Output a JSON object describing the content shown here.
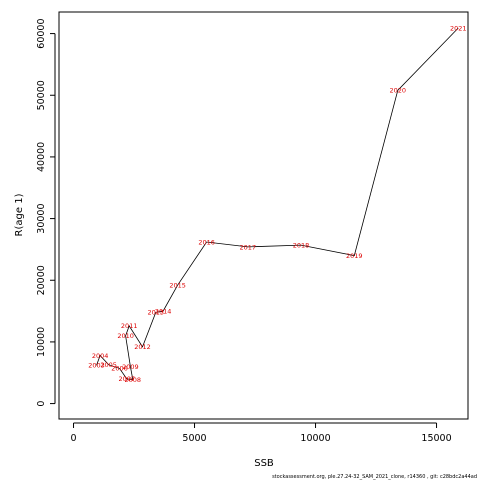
{
  "chart_data": {
    "type": "line",
    "xlabel": "SSB",
    "ylabel": "R(age 1)",
    "xlim": [
      -600,
      16300
    ],
    "ylim": [
      -2500,
      63500
    ],
    "x_ticks": [
      0,
      5000,
      10000,
      15000
    ],
    "x_tick_labels": [
      "0",
      "5000",
      "10000",
      "15000"
    ],
    "y_ticks": [
      0,
      10000,
      20000,
      30000,
      40000,
      50000,
      60000
    ],
    "y_tick_labels": [
      "0",
      "10000",
      "20000",
      "30000",
      "40000",
      "50000",
      "60000"
    ],
    "grid": false,
    "points": [
      {
        "label": "2003",
        "x": 950,
        "y": 6200
      },
      {
        "label": "2004",
        "x": 1100,
        "y": 7800
      },
      {
        "label": "2005",
        "x": 1450,
        "y": 6300
      },
      {
        "label": "2006",
        "x": 1900,
        "y": 5700
      },
      {
        "label": "2007",
        "x": 2200,
        "y": 4000
      },
      {
        "label": "2008",
        "x": 2450,
        "y": 3900
      },
      {
        "label": "2009",
        "x": 2350,
        "y": 6000
      },
      {
        "label": "2010",
        "x": 2150,
        "y": 11000
      },
      {
        "label": "2011",
        "x": 2300,
        "y": 12600
      },
      {
        "label": "2012",
        "x": 2850,
        "y": 9200
      },
      {
        "label": "2013",
        "x": 3400,
        "y": 14800
      },
      {
        "label": "2014",
        "x": 3700,
        "y": 15000
      },
      {
        "label": "2015",
        "x": 4300,
        "y": 19200
      },
      {
        "label": "2016",
        "x": 5500,
        "y": 26200
      },
      {
        "label": "2017",
        "x": 7200,
        "y": 25400
      },
      {
        "label": "2018",
        "x": 9400,
        "y": 25700
      },
      {
        "label": "2019",
        "x": 11600,
        "y": 24000
      },
      {
        "label": "2020",
        "x": 13400,
        "y": 50800
      },
      {
        "label": "2021",
        "x": 15900,
        "y": 60900
      }
    ],
    "line_color": "#000000",
    "label_color": "#dd0000"
  },
  "footer": "stockassessment.org,  ple.27.24-32_SAM_2021_clone,  r14360 ,  git: c28bdc2a44ad"
}
